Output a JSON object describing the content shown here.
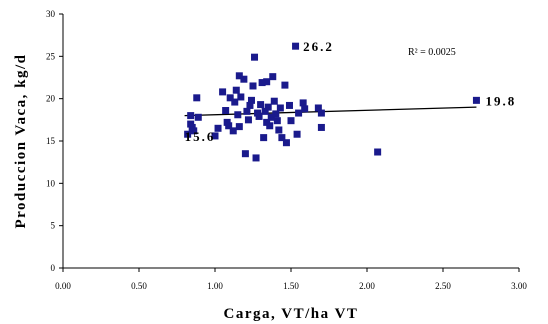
{
  "chart_data": {
    "type": "scatter",
    "xlabel": "Carga, VT/ha VT",
    "ylabel": "Produccion Vaca, kg/d",
    "xlim": [
      0,
      3
    ],
    "ylim": [
      0,
      30
    ],
    "x_ticks": [
      "0.00",
      "0.50",
      "1.00",
      "1.50",
      "2.00",
      "2.50",
      "3.00"
    ],
    "y_ticks": [
      "0",
      "5",
      "10",
      "15",
      "20",
      "25",
      "30"
    ],
    "grid": false,
    "marker_color": "#1a1a8c",
    "trendline_color": "#000000",
    "r_squared_label": "R² = 0.0025",
    "annotations": [
      {
        "text": "26.2",
        "x": 1.58,
        "y": 26.2
      },
      {
        "text": "19.8",
        "x": 2.78,
        "y": 19.8
      },
      {
        "text": "15.6",
        "x": 0.8,
        "y": 15.6
      }
    ],
    "trendline": {
      "x": [
        0.8,
        2.72
      ],
      "y": [
        18.0,
        19.0
      ]
    },
    "points": [
      {
        "x": 0.82,
        "y": 15.8
      },
      {
        "x": 0.84,
        "y": 18.0
      },
      {
        "x": 0.84,
        "y": 17.0
      },
      {
        "x": 0.85,
        "y": 16.6
      },
      {
        "x": 0.86,
        "y": 16.2
      },
      {
        "x": 0.88,
        "y": 20.1
      },
      {
        "x": 0.89,
        "y": 17.8
      },
      {
        "x": 1.0,
        "y": 15.6
      },
      {
        "x": 1.02,
        "y": 16.5
      },
      {
        "x": 1.05,
        "y": 20.8
      },
      {
        "x": 1.07,
        "y": 18.6
      },
      {
        "x": 1.08,
        "y": 17.2
      },
      {
        "x": 1.09,
        "y": 16.8
      },
      {
        "x": 1.1,
        "y": 20.1
      },
      {
        "x": 1.12,
        "y": 16.2
      },
      {
        "x": 1.13,
        "y": 19.6
      },
      {
        "x": 1.14,
        "y": 21.0
      },
      {
        "x": 1.15,
        "y": 18.1
      },
      {
        "x": 1.16,
        "y": 16.7
      },
      {
        "x": 1.16,
        "y": 22.7
      },
      {
        "x": 1.17,
        "y": 20.2
      },
      {
        "x": 1.19,
        "y": 22.3
      },
      {
        "x": 1.2,
        "y": 13.5
      },
      {
        "x": 1.21,
        "y": 18.5
      },
      {
        "x": 1.22,
        "y": 17.5
      },
      {
        "x": 1.23,
        "y": 19.2
      },
      {
        "x": 1.24,
        "y": 19.8
      },
      {
        "x": 1.25,
        "y": 21.5
      },
      {
        "x": 1.26,
        "y": 24.9
      },
      {
        "x": 1.27,
        "y": 13.0
      },
      {
        "x": 1.28,
        "y": 18.3
      },
      {
        "x": 1.29,
        "y": 17.9
      },
      {
        "x": 1.3,
        "y": 19.3
      },
      {
        "x": 1.31,
        "y": 21.9
      },
      {
        "x": 1.32,
        "y": 15.4
      },
      {
        "x": 1.33,
        "y": 18.5
      },
      {
        "x": 1.34,
        "y": 17.2
      },
      {
        "x": 1.34,
        "y": 22.0
      },
      {
        "x": 1.35,
        "y": 19.0
      },
      {
        "x": 1.36,
        "y": 16.8
      },
      {
        "x": 1.37,
        "y": 17.8
      },
      {
        "x": 1.38,
        "y": 22.6
      },
      {
        "x": 1.39,
        "y": 19.7
      },
      {
        "x": 1.4,
        "y": 18.2
      },
      {
        "x": 1.41,
        "y": 17.4
      },
      {
        "x": 1.42,
        "y": 16.3
      },
      {
        "x": 1.43,
        "y": 18.9
      },
      {
        "x": 1.44,
        "y": 15.4
      },
      {
        "x": 1.46,
        "y": 21.6
      },
      {
        "x": 1.47,
        "y": 14.8
      },
      {
        "x": 1.49,
        "y": 19.2
      },
      {
        "x": 1.5,
        "y": 17.4
      },
      {
        "x": 1.53,
        "y": 26.2
      },
      {
        "x": 1.55,
        "y": 18.3
      },
      {
        "x": 1.54,
        "y": 15.8
      },
      {
        "x": 1.58,
        "y": 19.5
      },
      {
        "x": 1.59,
        "y": 18.8
      },
      {
        "x": 1.68,
        "y": 18.9
      },
      {
        "x": 1.7,
        "y": 16.6
      },
      {
        "x": 1.7,
        "y": 18.3
      },
      {
        "x": 2.07,
        "y": 13.7
      },
      {
        "x": 2.72,
        "y": 19.8
      }
    ]
  }
}
